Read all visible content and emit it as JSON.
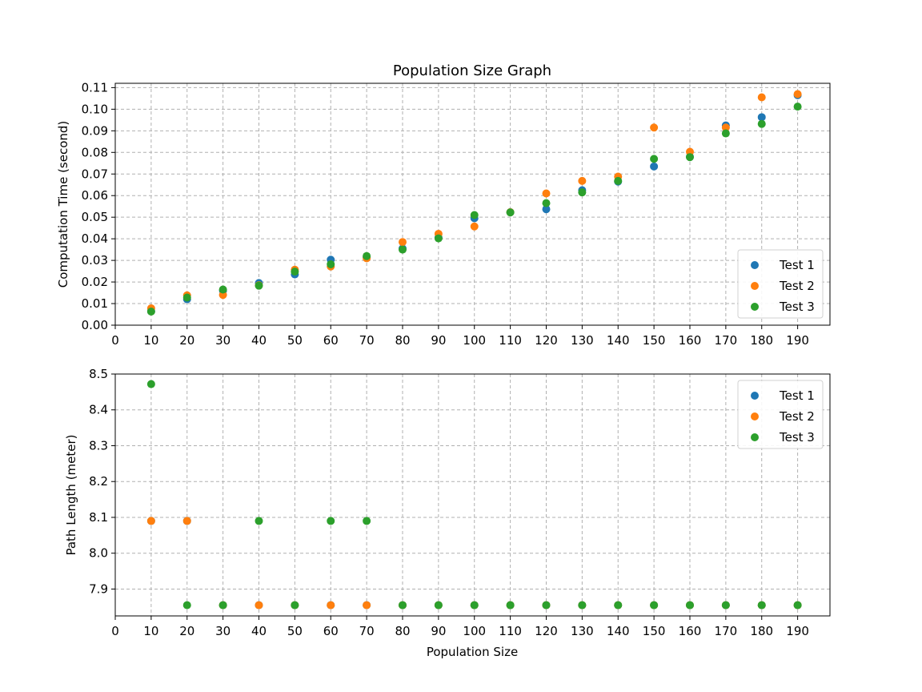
{
  "chart_data": [
    {
      "type": "scatter",
      "title": "Population Size Graph",
      "xlabel": "",
      "ylabel": "Computation Time (second)",
      "xlim": [
        0,
        199
      ],
      "ylim": [
        0,
        0.112
      ],
      "xticks": [
        0,
        10,
        20,
        30,
        40,
        50,
        60,
        70,
        80,
        90,
        100,
        110,
        120,
        130,
        140,
        150,
        160,
        170,
        180,
        190
      ],
      "yticks": [
        0.0,
        0.01,
        0.02,
        0.03,
        0.04,
        0.05,
        0.06,
        0.07,
        0.08,
        0.09,
        0.1,
        0.11
      ],
      "ytick_labels": [
        "0.00",
        "0.01",
        "0.02",
        "0.03",
        "0.04",
        "0.05",
        "0.06",
        "0.07",
        "0.08",
        "0.09",
        "0.10",
        "0.11"
      ],
      "grid": true,
      "legend_position": "lower-right",
      "x": [
        10,
        20,
        30,
        40,
        50,
        60,
        70,
        80,
        90,
        100,
        110,
        120,
        130,
        140,
        150,
        160,
        170,
        180,
        190
      ],
      "series": [
        {
          "name": "Test 1",
          "color": "#1f77b4",
          "values": [
            0.0065,
            0.012,
            0.016,
            0.0195,
            0.0235,
            0.0303,
            0.0315,
            0.0355,
            0.0405,
            0.0495,
            0.0523,
            0.0537,
            0.0625,
            0.0665,
            0.0735,
            0.078,
            0.0925,
            0.0963,
            0.1065
          ]
        },
        {
          "name": "Test 2",
          "color": "#ff7f0e",
          "values": [
            0.0078,
            0.0138,
            0.014,
            0.0185,
            0.0257,
            0.0272,
            0.031,
            0.0385,
            0.0423,
            0.0457,
            0.0523,
            0.061,
            0.0668,
            0.0688,
            0.0915,
            0.0803,
            0.0915,
            0.1055,
            0.107
          ]
        },
        {
          "name": "Test 3",
          "color": "#2ca02c",
          "values": [
            0.0063,
            0.0128,
            0.0165,
            0.0183,
            0.0248,
            0.0282,
            0.032,
            0.035,
            0.0402,
            0.051,
            0.0522,
            0.0565,
            0.0615,
            0.0668,
            0.077,
            0.0778,
            0.0888,
            0.0932,
            0.1012
          ]
        }
      ]
    },
    {
      "type": "scatter",
      "title": "",
      "xlabel": "Population Size",
      "ylabel": "Path Length (meter)",
      "xlim": [
        0,
        199
      ],
      "ylim": [
        7.825,
        8.5
      ],
      "xticks": [
        0,
        10,
        20,
        30,
        40,
        50,
        60,
        70,
        80,
        90,
        100,
        110,
        120,
        130,
        140,
        150,
        160,
        170,
        180,
        190
      ],
      "yticks": [
        7.9,
        8.0,
        8.1,
        8.2,
        8.3,
        8.4,
        8.5
      ],
      "ytick_labels": [
        "7.9",
        "8.0",
        "8.1",
        "8.2",
        "8.3",
        "8.4",
        "8.5"
      ],
      "grid": true,
      "legend_position": "upper-right",
      "x": [
        10,
        20,
        30,
        40,
        50,
        60,
        70,
        80,
        90,
        100,
        110,
        120,
        130,
        140,
        150,
        160,
        170,
        180,
        190
      ],
      "series": [
        {
          "name": "Test 1",
          "color": "#1f77b4",
          "values": [
            8.09,
            8.09,
            7.855,
            7.855,
            7.855,
            7.855,
            7.855,
            7.855,
            7.855,
            7.855,
            7.855,
            7.855,
            7.855,
            7.855,
            7.855,
            7.855,
            7.855,
            7.855,
            7.855
          ]
        },
        {
          "name": "Test 2",
          "color": "#ff7f0e",
          "values": [
            8.09,
            8.09,
            7.855,
            7.855,
            7.855,
            7.855,
            7.855,
            7.855,
            7.855,
            7.855,
            7.855,
            7.855,
            7.855,
            7.855,
            7.855,
            7.855,
            7.855,
            7.855,
            7.855
          ]
        },
        {
          "name": "Test 3",
          "color": "#2ca02c",
          "values": [
            8.472,
            7.855,
            7.855,
            8.09,
            7.855,
            8.09,
            8.09,
            7.855,
            7.855,
            7.855,
            7.855,
            7.855,
            7.855,
            7.855,
            7.855,
            7.855,
            7.855,
            7.855,
            7.855
          ]
        }
      ]
    }
  ]
}
